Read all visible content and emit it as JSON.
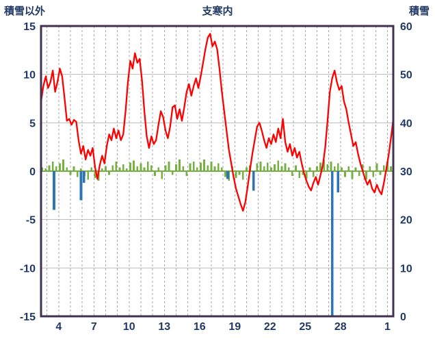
{
  "header": {
    "left_axis_title": "積雪以外",
    "chart_title": "支寒内",
    "right_axis_title": "積雪"
  },
  "chart_data": {
    "type": "line",
    "title": "支寒内",
    "legend": "none",
    "grid": {
      "horizontal": "solid",
      "vertical": "dashed-daily"
    },
    "style": {
      "border_color": "#403152",
      "h_grid_color": "#BFBFBF",
      "v_grid_color": "#A6A6A6",
      "zero_line_color": "#76B043",
      "text_color": "#203864",
      "background": "#FFFFFF"
    },
    "left_axis": {
      "title": "積雪以外",
      "min": -15,
      "max": 15,
      "tick_step": 5,
      "ticks": [
        15,
        10,
        5,
        0,
        -5,
        -10,
        -15
      ]
    },
    "right_axis": {
      "title": "積雪",
      "min": 0,
      "max": 60,
      "tick_step": 10,
      "ticks": [
        60,
        50,
        40,
        30,
        20,
        10,
        0
      ]
    },
    "x_axis": {
      "domain": [
        2.5,
        32.5
      ],
      "tick_labels": [
        "4",
        "7",
        "10",
        "13",
        "16",
        "19",
        "22",
        "25",
        "28",
        "1"
      ],
      "tick_days": [
        4,
        7,
        10,
        13,
        16,
        19,
        22,
        25,
        28,
        32
      ]
    },
    "series": [
      {
        "name": "green-bars",
        "kind": "bar",
        "color": "#76B043",
        "axis": "left",
        "bar_width_days": 0.16,
        "points": [
          [
            2.6,
            0.4
          ],
          [
            2.9,
            0.3
          ],
          [
            3.2,
            0.6
          ],
          [
            3.5,
            1.0
          ],
          [
            3.8,
            0.5
          ],
          [
            4.1,
            0.8
          ],
          [
            4.4,
            1.2
          ],
          [
            4.7,
            0.4
          ],
          [
            5.0,
            -0.4
          ],
          [
            5.3,
            0.5
          ],
          [
            5.6,
            -0.6
          ],
          [
            5.9,
            0.3
          ],
          [
            6.2,
            -0.5
          ],
          [
            6.5,
            -0.9
          ],
          [
            6.8,
            0.4
          ],
          [
            7.1,
            -0.7
          ],
          [
            7.4,
            -1.0
          ],
          [
            7.7,
            0.3
          ],
          [
            8.0,
            0.5
          ],
          [
            8.3,
            -0.4
          ],
          [
            8.6,
            0.6
          ],
          [
            8.9,
            1.0
          ],
          [
            9.2,
            0.4
          ],
          [
            9.5,
            0.7
          ],
          [
            9.8,
            0.3
          ],
          [
            10.1,
            0.9
          ],
          [
            10.4,
            1.1
          ],
          [
            10.7,
            0.5
          ],
          [
            11.0,
            0.8
          ],
          [
            11.3,
            0.4
          ],
          [
            11.6,
            1.0
          ],
          [
            11.9,
            0.6
          ],
          [
            12.2,
            -0.5
          ],
          [
            12.5,
            0.4
          ],
          [
            12.8,
            -0.8
          ],
          [
            13.1,
            0.6
          ],
          [
            13.4,
            1.0
          ],
          [
            13.7,
            -0.4
          ],
          [
            14.0,
            0.7
          ],
          [
            14.3,
            1.2
          ],
          [
            14.6,
            0.5
          ],
          [
            14.9,
            -0.5
          ],
          [
            15.2,
            0.8
          ],
          [
            15.5,
            1.0
          ],
          [
            15.8,
            0.4
          ],
          [
            16.1,
            0.9
          ],
          [
            16.4,
            1.2
          ],
          [
            16.7,
            0.6
          ],
          [
            17.0,
            1.0
          ],
          [
            17.3,
            0.5
          ],
          [
            17.6,
            0.8
          ],
          [
            17.9,
            0.4
          ],
          [
            18.2,
            -0.6
          ],
          [
            18.5,
            -1.0
          ],
          [
            18.8,
            0.5
          ],
          [
            19.1,
            -0.7
          ],
          [
            19.4,
            -0.4
          ],
          [
            19.7,
            -0.9
          ],
          [
            20.0,
            0.4
          ],
          [
            20.3,
            0.6
          ],
          [
            20.6,
            -0.5
          ],
          [
            20.9,
            0.8
          ],
          [
            21.2,
            1.0
          ],
          [
            21.5,
            0.5
          ],
          [
            21.8,
            0.9
          ],
          [
            22.1,
            0.4
          ],
          [
            22.4,
            0.7
          ],
          [
            22.7,
            1.1
          ],
          [
            23.0,
            0.5
          ],
          [
            23.3,
            0.8
          ],
          [
            23.6,
            0.4
          ],
          [
            23.9,
            -0.5
          ],
          [
            24.2,
            0.6
          ],
          [
            24.5,
            -0.7
          ],
          [
            24.8,
            -0.4
          ],
          [
            25.1,
            -0.8
          ],
          [
            25.4,
            0.4
          ],
          [
            25.7,
            -0.6
          ],
          [
            26.0,
            0.5
          ],
          [
            26.3,
            0.9
          ],
          [
            26.6,
            1.2
          ],
          [
            26.9,
            0.7
          ],
          [
            27.2,
            1.0
          ],
          [
            27.5,
            0.5
          ],
          [
            27.8,
            0.8
          ],
          [
            28.1,
            0.4
          ],
          [
            28.4,
            -0.6
          ],
          [
            28.7,
            0.5
          ],
          [
            29.0,
            -0.8
          ],
          [
            29.3,
            0.4
          ],
          [
            29.6,
            -0.5
          ],
          [
            29.9,
            0.7
          ],
          [
            30.2,
            -0.9
          ],
          [
            30.5,
            0.5
          ],
          [
            30.8,
            -0.6
          ],
          [
            31.1,
            0.8
          ],
          [
            31.4,
            -0.4
          ],
          [
            31.7,
            0.6
          ],
          [
            32.0,
            1.0
          ],
          [
            32.3,
            0.5
          ]
        ]
      },
      {
        "name": "blue-bars",
        "kind": "bar",
        "color": "#2E75B6",
        "axis": "left",
        "bar_width_days": 0.22,
        "points": [
          [
            3.6,
            -4.0
          ],
          [
            5.9,
            -3.0
          ],
          [
            6.15,
            -1.2
          ],
          [
            18.4,
            -0.8
          ],
          [
            20.6,
            -2.0
          ],
          [
            27.3,
            -15.0
          ],
          [
            27.8,
            -2.2
          ]
        ]
      },
      {
        "name": "red-line",
        "kind": "line",
        "color": "#FF0000",
        "axis": "left",
        "points": [
          [
            2.5,
            7.2
          ],
          [
            2.7,
            8.8
          ],
          [
            2.9,
            9.8
          ],
          [
            3.1,
            8.6
          ],
          [
            3.3,
            9.2
          ],
          [
            3.5,
            10.4
          ],
          [
            3.7,
            8.2
          ],
          [
            3.9,
            9.2
          ],
          [
            4.1,
            10.6
          ],
          [
            4.3,
            9.8
          ],
          [
            4.5,
            7.6
          ],
          [
            4.7,
            5.2
          ],
          [
            4.9,
            5.4
          ],
          [
            5.1,
            4.8
          ],
          [
            5.3,
            5.3
          ],
          [
            5.5,
            5.1
          ],
          [
            5.7,
            3.2
          ],
          [
            5.9,
            1.8
          ],
          [
            6.1,
            2.6
          ],
          [
            6.3,
            1.2
          ],
          [
            6.5,
            2.2
          ],
          [
            6.7,
            1.6
          ],
          [
            6.9,
            2.4
          ],
          [
            7.1,
            0.4
          ],
          [
            7.3,
            -0.8
          ],
          [
            7.5,
            0.6
          ],
          [
            7.7,
            1.6
          ],
          [
            7.9,
            0.8
          ],
          [
            8.1,
            2.6
          ],
          [
            8.3,
            3.8
          ],
          [
            8.5,
            3.2
          ],
          [
            8.7,
            4.4
          ],
          [
            8.9,
            3.4
          ],
          [
            9.1,
            4.2
          ],
          [
            9.3,
            3.2
          ],
          [
            9.5,
            3.8
          ],
          [
            9.7,
            6.2
          ],
          [
            9.9,
            9.2
          ],
          [
            10.1,
            11.4
          ],
          [
            10.3,
            10.6
          ],
          [
            10.5,
            12.2
          ],
          [
            10.7,
            11.2
          ],
          [
            10.9,
            11.6
          ],
          [
            11.1,
            9.4
          ],
          [
            11.3,
            6.2
          ],
          [
            11.5,
            3.6
          ],
          [
            11.7,
            2.4
          ],
          [
            11.9,
            3.6
          ],
          [
            12.1,
            2.8
          ],
          [
            12.3,
            3.2
          ],
          [
            12.5,
            4.8
          ],
          [
            12.7,
            6.2
          ],
          [
            12.9,
            5.6
          ],
          [
            13.1,
            4.2
          ],
          [
            13.3,
            3.4
          ],
          [
            13.5,
            4.6
          ],
          [
            13.7,
            6.6
          ],
          [
            13.9,
            6.8
          ],
          [
            14.1,
            5.4
          ],
          [
            14.3,
            6.4
          ],
          [
            14.5,
            5.2
          ],
          [
            14.7,
            6.6
          ],
          [
            14.9,
            8.2
          ],
          [
            15.1,
            9.0
          ],
          [
            15.3,
            7.8
          ],
          [
            15.5,
            8.8
          ],
          [
            15.7,
            9.6
          ],
          [
            15.9,
            8.6
          ],
          [
            16.1,
            9.8
          ],
          [
            16.3,
            11.2
          ],
          [
            16.5,
            12.6
          ],
          [
            16.7,
            13.8
          ],
          [
            16.9,
            14.2
          ],
          [
            17.1,
            12.9
          ],
          [
            17.3,
            13.4
          ],
          [
            17.5,
            12.6
          ],
          [
            17.7,
            10.6
          ],
          [
            17.9,
            8.2
          ],
          [
            18.1,
            6.2
          ],
          [
            18.3,
            4.2
          ],
          [
            18.5,
            2.2
          ],
          [
            18.7,
            0.8
          ],
          [
            18.9,
            -0.6
          ],
          [
            19.1,
            -1.8
          ],
          [
            19.3,
            -2.6
          ],
          [
            19.5,
            -3.4
          ],
          [
            19.7,
            -4.1
          ],
          [
            19.9,
            -3.2
          ],
          [
            20.1,
            -1.6
          ],
          [
            20.3,
            0.2
          ],
          [
            20.5,
            1.8
          ],
          [
            20.7,
            3.2
          ],
          [
            20.9,
            4.6
          ],
          [
            21.1,
            5.0
          ],
          [
            21.3,
            4.2
          ],
          [
            21.5,
            3.2
          ],
          [
            21.7,
            2.4
          ],
          [
            21.9,
            3.4
          ],
          [
            22.1,
            2.8
          ],
          [
            22.3,
            3.8
          ],
          [
            22.5,
            3.0
          ],
          [
            22.7,
            4.4
          ],
          [
            22.9,
            3.4
          ],
          [
            23.1,
            5.4
          ],
          [
            23.3,
            3.0
          ],
          [
            23.5,
            2.0
          ],
          [
            23.7,
            2.8
          ],
          [
            23.9,
            1.6
          ],
          [
            24.1,
            2.4
          ],
          [
            24.3,
            1.4
          ],
          [
            24.5,
            2.0
          ],
          [
            24.7,
            0.8
          ],
          [
            24.9,
            -0.2
          ],
          [
            25.1,
            -1.0
          ],
          [
            25.3,
            -1.6
          ],
          [
            25.5,
            -2.0
          ],
          [
            25.7,
            -1.2
          ],
          [
            25.9,
            -0.6
          ],
          [
            26.1,
            -1.4
          ],
          [
            26.3,
            -0.4
          ],
          [
            26.5,
            0.6
          ],
          [
            26.7,
            2.4
          ],
          [
            26.9,
            5.2
          ],
          [
            27.1,
            8.2
          ],
          [
            27.3,
            9.6
          ],
          [
            27.5,
            10.4
          ],
          [
            27.7,
            9.2
          ],
          [
            27.9,
            8.4
          ],
          [
            28.1,
            8.8
          ],
          [
            28.3,
            7.2
          ],
          [
            28.5,
            6.4
          ],
          [
            28.7,
            5.0
          ],
          [
            28.9,
            3.8
          ],
          [
            29.1,
            2.6
          ],
          [
            29.3,
            3.0
          ],
          [
            29.5,
            1.8
          ],
          [
            29.7,
            0.8
          ],
          [
            29.9,
            0.0
          ],
          [
            30.1,
            -0.8
          ],
          [
            30.3,
            -1.4
          ],
          [
            30.5,
            -0.9
          ],
          [
            30.7,
            -1.8
          ],
          [
            30.9,
            -2.2
          ],
          [
            31.1,
            -1.4
          ],
          [
            31.3,
            -2.0
          ],
          [
            31.5,
            -2.4
          ],
          [
            31.7,
            -1.2
          ],
          [
            31.9,
            0.2
          ],
          [
            32.1,
            1.6
          ],
          [
            32.3,
            3.4
          ],
          [
            32.5,
            5.4
          ]
        ]
      }
    ]
  }
}
